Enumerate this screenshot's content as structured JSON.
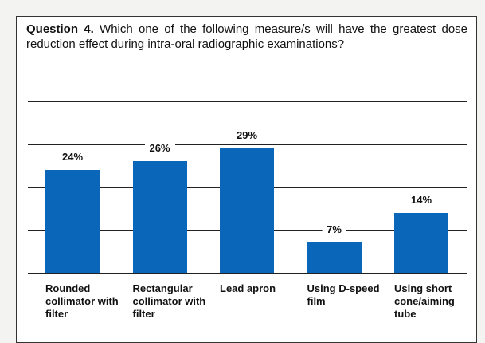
{
  "chart_data": {
    "type": "bar",
    "title_prefix": "Question 4.",
    "title": "Which one of the following measure/s will have the greatest dose reduction effect during intra-oral radiographic examinations?",
    "categories": [
      "Rounded collimator with filter",
      "Rectangular collimator with filter",
      "Lead apron",
      "Using D-speed film",
      "Using short cone/aiming tube"
    ],
    "values": [
      24,
      26,
      29,
      7,
      14
    ],
    "value_labels": [
      "24%",
      "26%",
      "29%",
      "7%",
      "14%"
    ],
    "color": "#0a66b8",
    "ylim": [
      0,
      40
    ],
    "yticks": [
      0,
      10,
      20,
      30,
      40
    ],
    "grid": true
  }
}
